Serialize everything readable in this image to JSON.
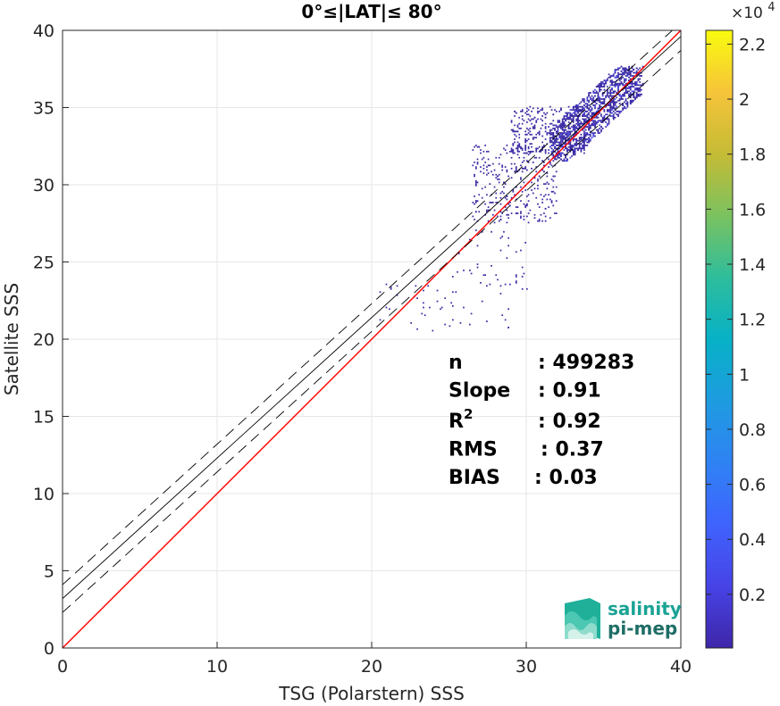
{
  "chart_data": {
    "type": "heatmap",
    "subtype": "density scatter",
    "title": "0°≤|LAT|≤ 80°",
    "xlabel": "TSG (Polarstern) SSS",
    "ylabel": "Satellite SSS",
    "xlim": [
      0,
      40
    ],
    "ylim": [
      0,
      40
    ],
    "xticks": [
      "0",
      "10",
      "20",
      "30",
      "40"
    ],
    "yticks": [
      "0",
      "5",
      "10",
      "15",
      "20",
      "25",
      "30",
      "35",
      "40"
    ],
    "grid": true,
    "lines": [
      {
        "name": "identity",
        "color": "#ff0000",
        "style": "solid",
        "x": [
          0,
          40
        ],
        "y": [
          0,
          40
        ]
      },
      {
        "name": "regression",
        "color": "#000000",
        "style": "solid",
        "x": [
          0,
          40
        ],
        "y": [
          3.2,
          39.6
        ]
      },
      {
        "name": "regression +std",
        "color": "#000000",
        "style": "dashed",
        "x": [
          0,
          40
        ],
        "y": [
          4.1,
          40.5
        ]
      },
      {
        "name": "regression -std",
        "color": "#000000",
        "style": "dashed",
        "x": [
          0,
          40
        ],
        "y": [
          2.3,
          38.7
        ]
      }
    ],
    "density_clusters": [
      {
        "x_range": [
          31.5,
          37.5
        ],
        "y_range": [
          31.5,
          37.6
        ],
        "density": "high"
      },
      {
        "x_range": [
          29.0,
          34.0
        ],
        "y_range": [
          32.0,
          35.0
        ],
        "density": "medium"
      },
      {
        "x_range": [
          26.5,
          32.0
        ],
        "y_range": [
          27.5,
          32.5
        ],
        "density": "medium"
      },
      {
        "x_range": [
          25.0,
          30.0
        ],
        "y_range": [
          23.0,
          27.0
        ],
        "density": "low"
      },
      {
        "x_range": [
          20.5,
          29.0
        ],
        "y_range": [
          20.5,
          23.5
        ],
        "density": "low"
      }
    ],
    "colorbar": {
      "min": 0,
      "max": 22500,
      "ticks": [
        "0.2",
        "0.4",
        "0.6",
        "0.8",
        "1",
        "1.2",
        "1.4",
        "1.6",
        "1.8",
        "2",
        "2.2"
      ],
      "tick_values": [
        0.2,
        0.4,
        0.6,
        0.8,
        1.0,
        1.2,
        1.4,
        1.6,
        1.8,
        2.0,
        2.2
      ],
      "range_scaled": [
        0.005,
        2.25
      ],
      "multiplier_base": "×10",
      "multiplier_exp": "4",
      "colormap": "parula"
    },
    "stats": [
      {
        "label": "n",
        "value": ": 499283"
      },
      {
        "label": "Slope",
        "value": ": 0.91"
      },
      {
        "label": "R",
        "sup": "2",
        "value": ": 0.92"
      },
      {
        "label": "RMS",
        "value": ": 0.37"
      },
      {
        "label": "BIAS",
        "value": ": 0.03"
      }
    ]
  },
  "logo": {
    "line1": "salinity",
    "line2": "pi-mep",
    "color": "#1aa394"
  }
}
